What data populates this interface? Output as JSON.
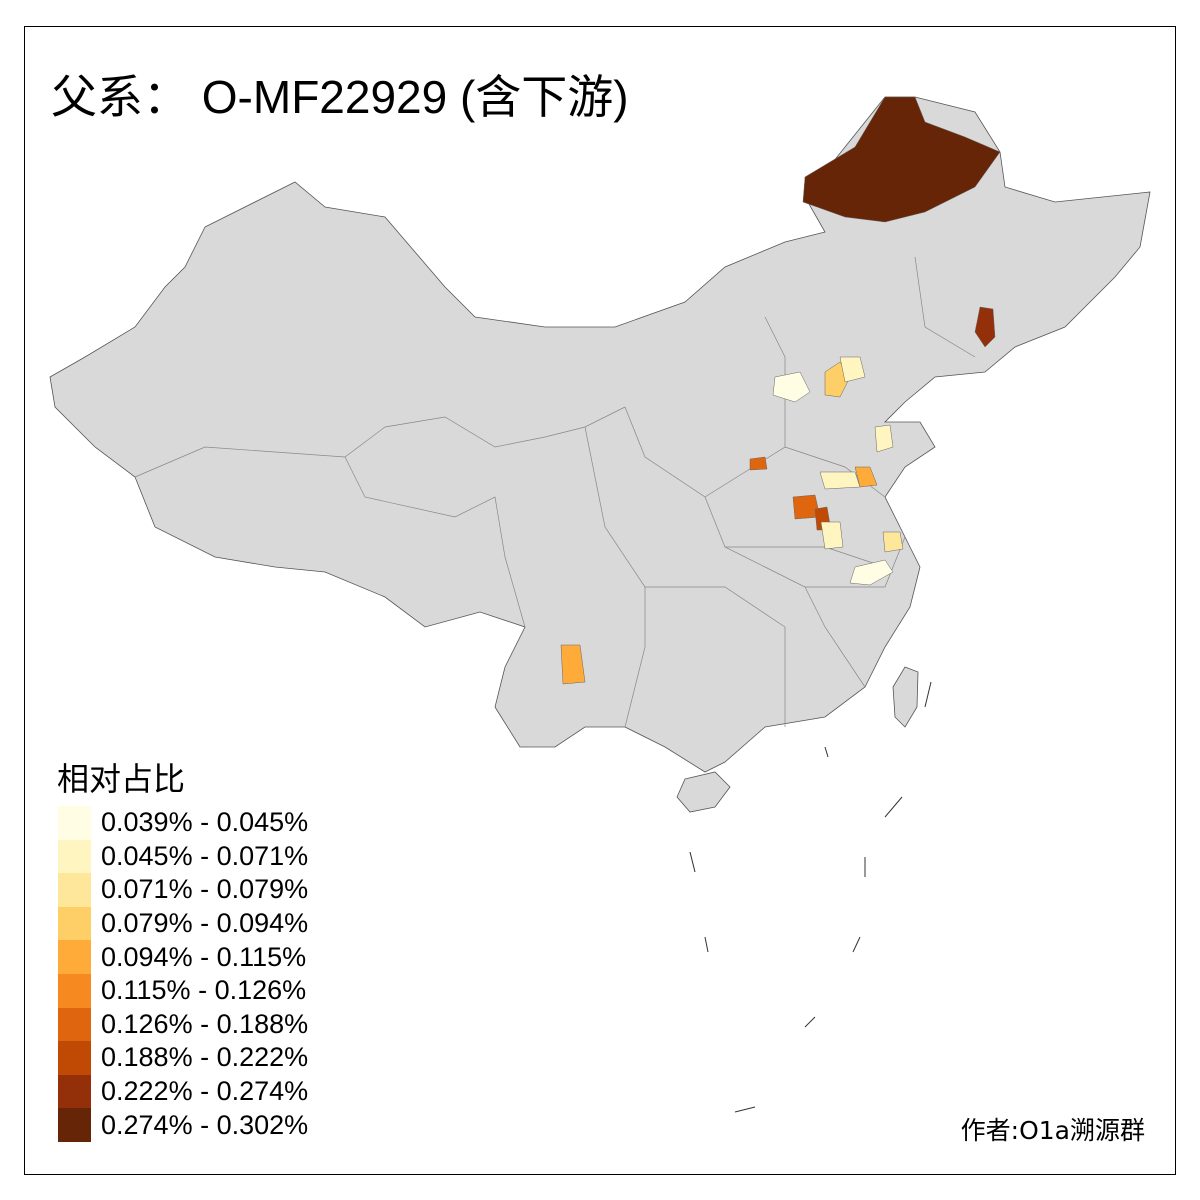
{
  "title": "父系： O-MF22929 (含下游)",
  "legend": {
    "title": "相对占比",
    "items": [
      {
        "label": "0.039% - 0.045%",
        "color": "#FFFDE4"
      },
      {
        "label": "0.045% - 0.071%",
        "color": "#FFF5C0"
      },
      {
        "label": "0.071% - 0.079%",
        "color": "#FEE69A"
      },
      {
        "label": "0.079% - 0.094%",
        "color": "#FECF66"
      },
      {
        "label": "0.094% - 0.115%",
        "color": "#FEAB3A"
      },
      {
        "label": "0.115% - 0.126%",
        "color": "#F68A21"
      },
      {
        "label": "0.126% - 0.188%",
        "color": "#E0650F"
      },
      {
        "label": "0.188% - 0.222%",
        "color": "#C04A04"
      },
      {
        "label": "0.222% - 0.274%",
        "color": "#93300A"
      },
      {
        "label": "0.274% - 0.302%",
        "color": "#662506"
      }
    ]
  },
  "author": "作者:O1a溯源群",
  "colors": {
    "base_region": "#D9D9D9",
    "border": "#555555"
  }
}
